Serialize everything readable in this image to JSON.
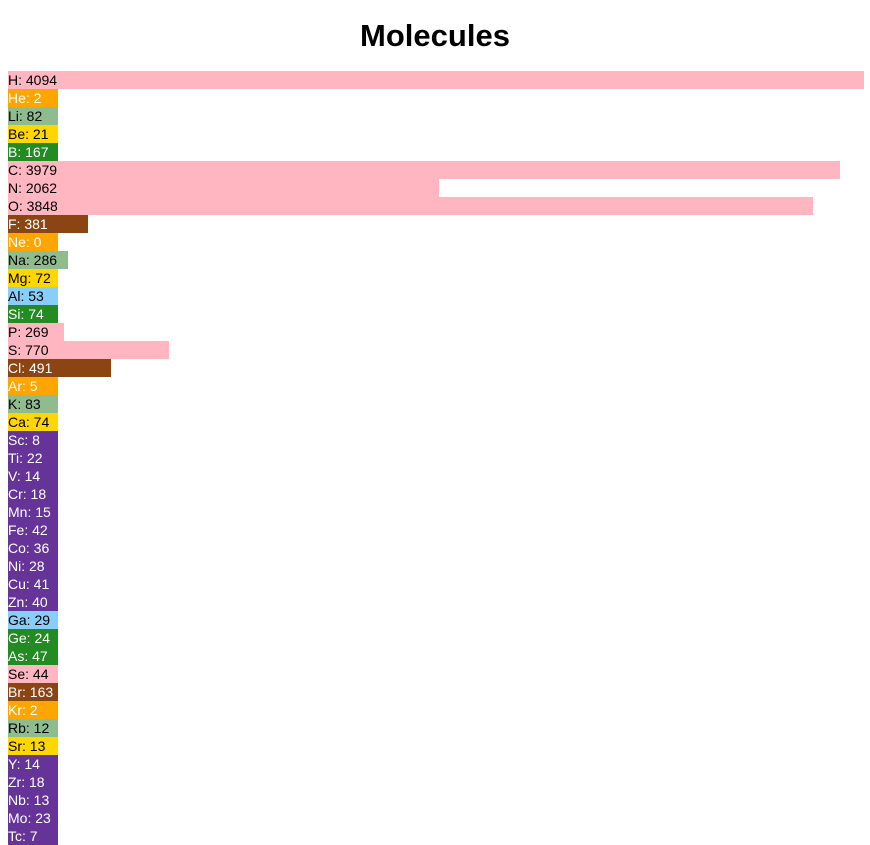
{
  "chart_data": {
    "type": "bar",
    "orientation": "horizontal",
    "title": "Molecules",
    "xlabel": "",
    "ylabel": "",
    "xlim": [
      0,
      4094
    ],
    "grid": false,
    "legend": "none",
    "categories": [
      "H",
      "He",
      "Li",
      "Be",
      "B",
      "C",
      "N",
      "O",
      "F",
      "Ne",
      "Na",
      "Mg",
      "Al",
      "Si",
      "P",
      "S",
      "Cl",
      "Ar",
      "K",
      "Ca",
      "Sc",
      "Ti",
      "V",
      "Cr",
      "Mn",
      "Fe",
      "Co",
      "Ni",
      "Cu",
      "Zn",
      "Ga",
      "Ge",
      "As",
      "Se",
      "Br",
      "Kr",
      "Rb",
      "Sr",
      "Y",
      "Zr",
      "Nb",
      "Mo",
      "Tc"
    ],
    "values": [
      4094,
      2,
      82,
      21,
      167,
      3979,
      2062,
      3848,
      381,
      0,
      286,
      72,
      53,
      74,
      269,
      770,
      491,
      5,
      83,
      74,
      8,
      22,
      14,
      18,
      15,
      42,
      36,
      28,
      41,
      40,
      29,
      24,
      47,
      44,
      163,
      2,
      12,
      13,
      14,
      18,
      13,
      23,
      7
    ],
    "group_colors": {
      "nonmetal": "#ffb6c1",
      "noble_gas": "#ffa500",
      "alkali_metal": "#8fbc8f",
      "alkaline_earth": "#ffd700",
      "metalloid": "#228b22",
      "halogen": "#8b4513",
      "post_transition": "#87cefa",
      "transition": "#663399"
    },
    "groups": [
      "nonmetal",
      "noble_gas",
      "alkali_metal",
      "alkaline_earth",
      "metalloid",
      "nonmetal",
      "nonmetal",
      "nonmetal",
      "halogen",
      "noble_gas",
      "alkali_metal",
      "alkaline_earth",
      "post_transition",
      "metalloid",
      "nonmetal",
      "nonmetal",
      "halogen",
      "noble_gas",
      "alkali_metal",
      "alkaline_earth",
      "transition",
      "transition",
      "transition",
      "transition",
      "transition",
      "transition",
      "transition",
      "transition",
      "transition",
      "transition",
      "post_transition",
      "metalloid",
      "metalloid",
      "nonmetal",
      "halogen",
      "noble_gas",
      "alkali_metal",
      "alkaline_earth",
      "transition",
      "transition",
      "transition",
      "transition",
      "transition"
    ],
    "label_colors": {
      "nonmetal": "#000000",
      "noble_gas": "#ffffff",
      "alkali_metal": "#000000",
      "alkaline_earth": "#000000",
      "metalloid": "#ffffff",
      "halogen": "#ffffff",
      "post_transition": "#000000",
      "transition": "#ffffff"
    }
  }
}
